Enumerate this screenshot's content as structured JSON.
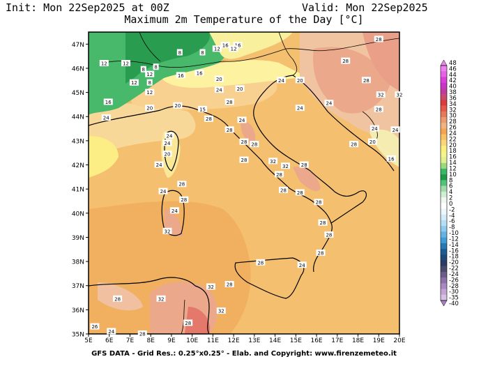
{
  "header": {
    "init": "Init: Mon 22Sep2025 at 00Z",
    "valid": "Valid: Mon 22Sep2025",
    "title": "Maximum 2m Temperature of the Day [°C]"
  },
  "footer": "GFS DATA - Grid Res.: 0.25°x0.25° - Elab. and Copyright: www.firenzemeteo.it",
  "map": {
    "lat_labels": [
      "47N",
      "46N",
      "45N",
      "44N",
      "43N",
      "42N",
      "41N",
      "40N",
      "39N",
      "38N",
      "37N",
      "36N",
      "35N"
    ],
    "lon_labels": [
      "5E",
      "6E",
      "7E",
      "8E",
      "9E",
      "10E",
      "11E",
      "12E",
      "13E",
      "14E",
      "15E",
      "16E",
      "17E",
      "18E",
      "19E",
      "20E"
    ],
    "contour_labels": [
      {
        "t": "16",
        "lon": 11.6,
        "lat": 46.95
      },
      {
        "t": "16",
        "lon": 12.2,
        "lat": 46.95
      },
      {
        "t": "12",
        "lon": 11.2,
        "lat": 46.8
      },
      {
        "t": "12",
        "lon": 12.0,
        "lat": 46.8
      },
      {
        "t": "8",
        "lon": 10.5,
        "lat": 46.65
      },
      {
        "t": "8",
        "lon": 9.4,
        "lat": 46.65
      },
      {
        "t": "12",
        "lon": 5.75,
        "lat": 46.2
      },
      {
        "t": "12",
        "lon": 6.8,
        "lat": 46.2
      },
      {
        "t": "8",
        "lon": 7.65,
        "lat": 45.95
      },
      {
        "t": "12",
        "lon": 7.95,
        "lat": 45.75
      },
      {
        "t": "8",
        "lon": 8.25,
        "lat": 46.05
      },
      {
        "t": "8",
        "lon": 7.95,
        "lat": 45.4
      },
      {
        "t": "12",
        "lon": 7.2,
        "lat": 45.4
      },
      {
        "t": "12",
        "lon": 7.95,
        "lat": 45.0
      },
      {
        "t": "16",
        "lon": 5.95,
        "lat": 44.6
      },
      {
        "t": "20",
        "lon": 7.95,
        "lat": 44.35
      },
      {
        "t": "20",
        "lon": 9.3,
        "lat": 44.45
      },
      {
        "t": "15",
        "lon": 10.5,
        "lat": 44.3
      },
      {
        "t": "16",
        "lon": 10.35,
        "lat": 45.8
      },
      {
        "t": "16",
        "lon": 9.45,
        "lat": 45.7
      },
      {
        "t": "20",
        "lon": 11.3,
        "lat": 45.55
      },
      {
        "t": "24",
        "lon": 11.3,
        "lat": 45.1
      },
      {
        "t": "20",
        "lon": 12.3,
        "lat": 45.15
      },
      {
        "t": "24",
        "lon": 14.3,
        "lat": 45.5
      },
      {
        "t": "20",
        "lon": 15.2,
        "lat": 45.5
      },
      {
        "t": "28",
        "lon": 17.4,
        "lat": 46.3
      },
      {
        "t": "28",
        "lon": 19.0,
        "lat": 47.2
      },
      {
        "t": "28",
        "lon": 18.4,
        "lat": 45.5
      },
      {
        "t": "32",
        "lon": 19.1,
        "lat": 44.9
      },
      {
        "t": "32",
        "lon": 20.0,
        "lat": 44.9
      },
      {
        "t": "28",
        "lon": 19.0,
        "lat": 44.3
      },
      {
        "t": "24",
        "lon": 15.2,
        "lat": 44.35
      },
      {
        "t": "24",
        "lon": 16.6,
        "lat": 44.55
      },
      {
        "t": "24",
        "lon": 18.8,
        "lat": 43.5
      },
      {
        "t": "24",
        "lon": 19.8,
        "lat": 43.45
      },
      {
        "t": "16",
        "lon": 19.6,
        "lat": 42.25
      },
      {
        "t": "28",
        "lon": 17.8,
        "lat": 42.85
      },
      {
        "t": "20",
        "lon": 18.7,
        "lat": 42.95
      },
      {
        "t": "24",
        "lon": 5.85,
        "lat": 43.95
      },
      {
        "t": "24",
        "lon": 8.9,
        "lat": 43.2
      },
      {
        "t": "28",
        "lon": 10.8,
        "lat": 43.9
      },
      {
        "t": "28",
        "lon": 11.8,
        "lat": 44.6
      },
      {
        "t": "24",
        "lon": 12.4,
        "lat": 43.85
      },
      {
        "t": "28",
        "lon": 11.8,
        "lat": 43.45
      },
      {
        "t": "28",
        "lon": 12.5,
        "lat": 42.95
      },
      {
        "t": "28",
        "lon": 13.0,
        "lat": 42.85
      },
      {
        "t": "28",
        "lon": 12.5,
        "lat": 42.2
      },
      {
        "t": "32",
        "lon": 13.9,
        "lat": 42.15
      },
      {
        "t": "32",
        "lon": 14.5,
        "lat": 41.95
      },
      {
        "t": "28",
        "lon": 15.4,
        "lat": 42.0
      },
      {
        "t": "28",
        "lon": 14.2,
        "lat": 41.6
      },
      {
        "t": "28",
        "lon": 14.4,
        "lat": 40.95
      },
      {
        "t": "28",
        "lon": 15.2,
        "lat": 40.85
      },
      {
        "t": "28",
        "lon": 16.1,
        "lat": 40.45
      },
      {
        "t": "24",
        "lon": 8.8,
        "lat": 42.9
      },
      {
        "t": "20",
        "lon": 8.8,
        "lat": 42.45
      },
      {
        "t": "24",
        "lon": 8.4,
        "lat": 42.0
      },
      {
        "t": "28",
        "lon": 9.5,
        "lat": 41.2
      },
      {
        "t": "24",
        "lon": 8.6,
        "lat": 40.9
      },
      {
        "t": "28",
        "lon": 9.6,
        "lat": 40.55
      },
      {
        "t": "24",
        "lon": 9.15,
        "lat": 40.1
      },
      {
        "t": "32",
        "lon": 8.8,
        "lat": 39.25
      },
      {
        "t": "28",
        "lon": 16.3,
        "lat": 39.6
      },
      {
        "t": "28",
        "lon": 16.6,
        "lat": 39.1
      },
      {
        "t": "28",
        "lon": 16.2,
        "lat": 38.35
      },
      {
        "t": "28",
        "lon": 13.3,
        "lat": 37.95
      },
      {
        "t": "24",
        "lon": 15.3,
        "lat": 37.85
      },
      {
        "t": "28",
        "lon": 11.8,
        "lat": 37.05
      },
      {
        "t": "32",
        "lon": 10.9,
        "lat": 36.95
      },
      {
        "t": "32",
        "lon": 8.5,
        "lat": 36.45
      },
      {
        "t": "28",
        "lon": 6.4,
        "lat": 36.45
      },
      {
        "t": "32",
        "lon": 11.4,
        "lat": 35.95
      },
      {
        "t": "28",
        "lon": 9.8,
        "lat": 35.45
      },
      {
        "t": "28",
        "lon": 7.6,
        "lat": 35.0
      },
      {
        "t": "26",
        "lon": 5.3,
        "lat": 35.3
      },
      {
        "t": "24",
        "lon": 6.1,
        "lat": 35.1
      }
    ]
  },
  "colorbar": {
    "labels": [
      "48",
      "46",
      "44",
      "42",
      "40",
      "38",
      "36",
      "34",
      "32",
      "30",
      "28",
      "26",
      "24",
      "22",
      "20",
      "18",
      "16",
      "14",
      "12",
      "10",
      "8",
      "6",
      "4",
      "2",
      "0",
      "-2",
      "-4",
      "-6",
      "-8",
      "-10",
      "-12",
      "-14",
      "-16",
      "-18",
      "-20",
      "-22",
      "-24",
      "-26",
      "-28",
      "-30",
      "-35",
      "-40"
    ],
    "colors": [
      "#ef80ef",
      "#e860e4",
      "#dc3edc",
      "#c832c8",
      "#c03aa0",
      "#c84a6e",
      "#dc3c3c",
      "#e45a46",
      "#e8785a",
      "#ec9a6e",
      "#f0b482",
      "#f5a550",
      "#f8c264",
      "#f8d878",
      "#fcf07c",
      "#f4f48c",
      "#e0f08c",
      "#9cd87c",
      "#38b864",
      "#1e9a46",
      "#50c47c",
      "#a0dca8",
      "#d2eed2",
      "#f0f8f0",
      "#ffffff",
      "#ecf6fc",
      "#d4ecf8",
      "#b4def4",
      "#8ccaee",
      "#64b2e2",
      "#3c9cd6",
      "#2478b4",
      "#1c5c94",
      "#1e4a78",
      "#2c3c64",
      "#4a4a6c",
      "#6c5c8c",
      "#8c70a8",
      "#a888c0",
      "#c4a4d4",
      "#d8c0e4"
    ]
  }
}
